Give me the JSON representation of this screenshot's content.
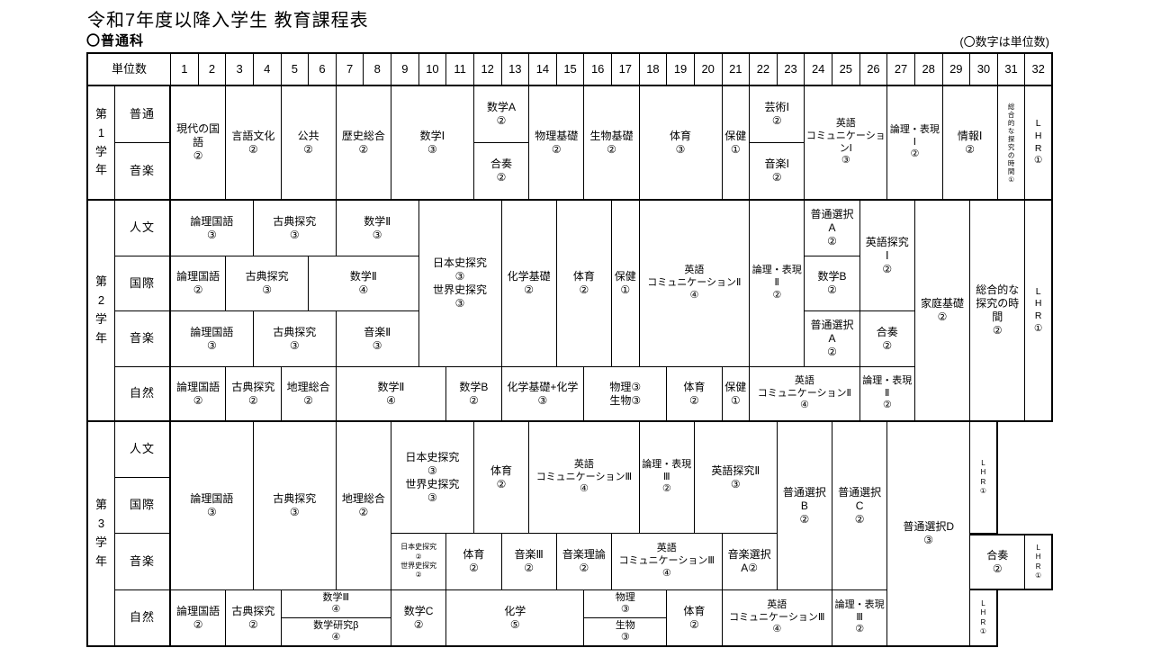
{
  "page": {
    "title": "令和7年度以降入学生 教育課程表",
    "section_label": "〇普通科",
    "unit_note": "(〇数字は単位数)"
  },
  "table": {
    "unit_header_label": "単位数",
    "unit_columns": [
      "1",
      "2",
      "3",
      "4",
      "5",
      "6",
      "7",
      "8",
      "9",
      "10",
      "11",
      "12",
      "13",
      "14",
      "15",
      "16",
      "17",
      "18",
      "19",
      "20",
      "21",
      "22",
      "23",
      "24",
      "25",
      "26",
      "27",
      "28",
      "29",
      "30",
      "31",
      "32"
    ],
    "year_rows": [
      {
        "r": 2,
        "rs": 2,
        "label": "第1学年",
        "b": "bl2 bb2"
      },
      {
        "r": 4,
        "rs": 4,
        "label": "第2学年",
        "b": "bl2 bb2"
      },
      {
        "r": 8,
        "rs": 4,
        "label": "第3学年",
        "b": "bl2 bb2"
      }
    ],
    "stream_rows": [
      {
        "r": 2,
        "label": "普通"
      },
      {
        "r": 3,
        "label": "音楽",
        "b": "bb2"
      },
      {
        "r": 4,
        "label": "人文"
      },
      {
        "r": 5,
        "label": "国際"
      },
      {
        "r": 6,
        "label": "音楽"
      },
      {
        "r": 7,
        "label": "自然",
        "b": "bb2"
      },
      {
        "r": 8,
        "label": "人文"
      },
      {
        "r": 9,
        "label": "国際"
      },
      {
        "r": 10,
        "label": "音楽"
      },
      {
        "r": 11,
        "label": "自然",
        "b": "bb2"
      }
    ],
    "cells": [
      {
        "r": 2,
        "rs": 2,
        "c": 1,
        "cs": 2,
        "t": [
          "現代の国語",
          "②"
        ],
        "b": "bb2"
      },
      {
        "r": 2,
        "rs": 2,
        "c": 3,
        "cs": 2,
        "t": [
          "言語文化",
          "②"
        ],
        "b": "bb2"
      },
      {
        "r": 2,
        "rs": 2,
        "c": 5,
        "cs": 2,
        "t": [
          "公共",
          "②"
        ],
        "b": "bb2"
      },
      {
        "r": 2,
        "rs": 2,
        "c": 7,
        "cs": 2,
        "t": [
          "歴史総合",
          "②"
        ],
        "b": "bb2"
      },
      {
        "r": 2,
        "rs": 2,
        "c": 9,
        "cs": 3,
        "t": [
          "数学Ⅰ",
          "③"
        ],
        "b": "bb2"
      },
      {
        "r": 2,
        "rs": 1,
        "c": 12,
        "cs": 2,
        "t": [
          "数学A",
          "②"
        ]
      },
      {
        "r": 3,
        "rs": 1,
        "c": 12,
        "cs": 2,
        "t": [
          "合奏",
          "②"
        ],
        "b": "bb2"
      },
      {
        "r": 2,
        "rs": 2,
        "c": 14,
        "cs": 2,
        "t": [
          "物理基礎",
          "②"
        ],
        "b": "bb2"
      },
      {
        "r": 2,
        "rs": 2,
        "c": 16,
        "cs": 2,
        "t": [
          "生物基礎",
          "②"
        ],
        "b": "bb2"
      },
      {
        "r": 2,
        "rs": 2,
        "c": 18,
        "cs": 3,
        "t": [
          "体育",
          "③"
        ],
        "b": "bb2"
      },
      {
        "r": 2,
        "rs": 2,
        "c": 21,
        "cs": 1,
        "t": [
          "保健",
          "①"
        ],
        "b": "bb2"
      },
      {
        "r": 2,
        "rs": 1,
        "c": 22,
        "cs": 2,
        "t": [
          "芸術Ⅰ",
          "②"
        ]
      },
      {
        "r": 3,
        "rs": 1,
        "c": 22,
        "cs": 2,
        "t": [
          "音楽Ⅰ",
          "②"
        ],
        "b": "bb2"
      },
      {
        "r": 2,
        "rs": 2,
        "c": 24,
        "cs": 3,
        "t": [
          "英語",
          "コミュニケーションⅠ",
          "③"
        ],
        "cls": "s11",
        "b": "bb2"
      },
      {
        "r": 2,
        "rs": 2,
        "c": 27,
        "cs": 2,
        "t": [
          "論理・表現",
          "Ⅰ",
          "②"
        ],
        "cls": "s11",
        "b": "bb2"
      },
      {
        "r": 2,
        "rs": 2,
        "c": 29,
        "cs": 2,
        "t": [
          "情報Ⅰ",
          "②"
        ],
        "b": "bb2"
      },
      {
        "r": 2,
        "rs": 2,
        "c": 31,
        "cs": 1,
        "t": [
          "総合的な探究の時間①"
        ],
        "cls": "vxs",
        "v": true,
        "b": "bb2"
      },
      {
        "r": 2,
        "rs": 2,
        "c": 32,
        "cs": 1,
        "t": [
          "LHR①"
        ],
        "cls": "lhr",
        "v": true,
        "b": "bb2 br2"
      },
      {
        "r": 4,
        "rs": 1,
        "c": 1,
        "cs": 3,
        "t": [
          "論理国語",
          "③"
        ]
      },
      {
        "r": 4,
        "rs": 1,
        "c": 4,
        "cs": 3,
        "t": [
          "古典探究",
          "③"
        ]
      },
      {
        "r": 4,
        "rs": 1,
        "c": 7,
        "cs": 3,
        "t": [
          "数学Ⅱ",
          "③"
        ]
      },
      {
        "r": 5,
        "rs": 1,
        "c": 1,
        "cs": 2,
        "t": [
          "論理国語",
          "②"
        ]
      },
      {
        "r": 5,
        "rs": 1,
        "c": 3,
        "cs": 3,
        "t": [
          "古典探究",
          "③"
        ]
      },
      {
        "r": 5,
        "rs": 1,
        "c": 6,
        "cs": 4,
        "t": [
          "数学Ⅱ",
          "④"
        ]
      },
      {
        "r": 6,
        "rs": 1,
        "c": 1,
        "cs": 3,
        "t": [
          "論理国語",
          "③"
        ]
      },
      {
        "r": 6,
        "rs": 1,
        "c": 4,
        "cs": 3,
        "t": [
          "古典探究",
          "③"
        ]
      },
      {
        "r": 6,
        "rs": 1,
        "c": 7,
        "cs": 3,
        "t": [
          "音楽Ⅱ",
          "③"
        ]
      },
      {
        "r": 4,
        "rs": 3,
        "c": 10,
        "cs": 3,
        "t": [
          "日本史探究",
          "③",
          "世界史探究",
          "③"
        ]
      },
      {
        "r": 4,
        "rs": 3,
        "c": 13,
        "cs": 2,
        "t": [
          "化学基礎",
          "②"
        ]
      },
      {
        "r": 4,
        "rs": 3,
        "c": 15,
        "cs": 2,
        "t": [
          "体育",
          "②"
        ]
      },
      {
        "r": 4,
        "rs": 3,
        "c": 17,
        "cs": 1,
        "t": [
          "保健",
          "①"
        ]
      },
      {
        "r": 4,
        "rs": 3,
        "c": 18,
        "cs": 4,
        "t": [
          "英語",
          "コミュニケーションⅡ",
          "④"
        ],
        "cls": "s11"
      },
      {
        "r": 4,
        "rs": 3,
        "c": 22,
        "cs": 2,
        "t": [
          "論理・表現",
          "Ⅱ",
          "②"
        ],
        "cls": "s11"
      },
      {
        "r": 4,
        "rs": 1,
        "c": 24,
        "cs": 2,
        "t": [
          "普通選択",
          "A",
          "②"
        ]
      },
      {
        "r": 5,
        "rs": 1,
        "c": 24,
        "cs": 2,
        "t": [
          "数学B",
          "②"
        ]
      },
      {
        "r": 6,
        "rs": 1,
        "c": 24,
        "cs": 2,
        "t": [
          "普通選択",
          "A",
          "②"
        ]
      },
      {
        "r": 4,
        "rs": 2,
        "c": 26,
        "cs": 2,
        "t": [
          "英語探究",
          "Ⅰ",
          "②"
        ]
      },
      {
        "r": 6,
        "rs": 1,
        "c": 26,
        "cs": 2,
        "t": [
          "合奏",
          "②"
        ]
      },
      {
        "r": 7,
        "rs": 1,
        "c": 1,
        "cs": 2,
        "t": [
          "論理国語",
          "②"
        ],
        "b": "bb2"
      },
      {
        "r": 7,
        "rs": 1,
        "c": 3,
        "cs": 2,
        "t": [
          "古典探究",
          "②"
        ],
        "b": "bb2"
      },
      {
        "r": 7,
        "rs": 1,
        "c": 5,
        "cs": 2,
        "t": [
          "地理総合",
          "②"
        ],
        "b": "bb2"
      },
      {
        "r": 7,
        "rs": 1,
        "c": 7,
        "cs": 4,
        "t": [
          "数学Ⅱ",
          "④"
        ],
        "b": "bb2"
      },
      {
        "r": 7,
        "rs": 1,
        "c": 11,
        "cs": 2,
        "t": [
          "数学B",
          "②"
        ],
        "b": "bb2"
      },
      {
        "r": 7,
        "rs": 1,
        "c": 13,
        "cs": 3,
        "t": [
          "化学基礎+化学",
          "③"
        ],
        "b": "bb2"
      },
      {
        "r": 7,
        "rs": 1,
        "c": 16,
        "cs": 3,
        "t": [
          "物理③",
          "生物③"
        ],
        "b": "bb2"
      },
      {
        "r": 7,
        "rs": 1,
        "c": 19,
        "cs": 2,
        "t": [
          "体育",
          "②"
        ],
        "b": "bb2"
      },
      {
        "r": 7,
        "rs": 1,
        "c": 21,
        "cs": 1,
        "t": [
          "保健",
          "①"
        ],
        "b": "bb2"
      },
      {
        "r": 7,
        "rs": 1,
        "c": 22,
        "cs": 4,
        "t": [
          "英語",
          "コミュニケーションⅡ",
          "④"
        ],
        "cls": "s11",
        "b": "bb2"
      },
      {
        "r": 7,
        "rs": 1,
        "c": 26,
        "cs": 2,
        "t": [
          "論理・表現",
          "Ⅱ",
          "②"
        ],
        "cls": "s11",
        "b": "bb2"
      },
      {
        "r": 4,
        "rs": 4,
        "c": 28,
        "cs": 2,
        "t": [
          "家庭基礎",
          "②"
        ],
        "b": "bb2"
      },
      {
        "r": 4,
        "rs": 4,
        "c": 30,
        "cs": 2,
        "t": [
          "総合的な探究の時間",
          "②"
        ],
        "b": "bb2"
      },
      {
        "r": 4,
        "rs": 4,
        "c": 32,
        "cs": 1,
        "t": [
          "LHR①"
        ],
        "cls": "lhr",
        "v": true,
        "b": "bb2 br2"
      },
      {
        "r": 8,
        "rs": 3,
        "c": 1,
        "cs": 3,
        "t": [
          "論理国語",
          "③"
        ]
      },
      {
        "r": 8,
        "rs": 3,
        "c": 4,
        "cs": 3,
        "t": [
          "古典探究",
          "③"
        ]
      },
      {
        "r": 8,
        "rs": 3,
        "c": 7,
        "cs": 2,
        "t": [
          "地理総合",
          "②"
        ]
      },
      {
        "r": 8,
        "rs": 2,
        "c": 9,
        "cs": 3,
        "t": [
          "日本史探究",
          "③",
          "世界史探究",
          "③"
        ]
      },
      {
        "r": 8,
        "rs": 2,
        "c": 12,
        "cs": 2,
        "t": [
          "体育",
          "②"
        ]
      },
      {
        "r": 8,
        "rs": 2,
        "c": 14,
        "cs": 4,
        "t": [
          "英語",
          "コミュニケーションⅢ",
          "④"
        ],
        "cls": "s11"
      },
      {
        "r": 8,
        "rs": 2,
        "c": 18,
        "cs": 2,
        "t": [
          "論理・表現",
          "Ⅲ",
          "②"
        ],
        "cls": "s11"
      },
      {
        "r": 8,
        "rs": 2,
        "c": 20,
        "cs": 3,
        "t": [
          "英語探究Ⅱ",
          "③"
        ]
      },
      {
        "r": 8,
        "rs": 3,
        "c": 23,
        "cs": 2,
        "t": [
          "普通選択",
          "B",
          "②"
        ]
      },
      {
        "r": 8,
        "rs": 3,
        "c": 25,
        "cs": 2,
        "t": [
          "普通選択",
          "C",
          "②"
        ]
      },
      {
        "r": 8,
        "rs": 4,
        "c": 27,
        "cs": 3,
        "t": [
          "普通選択D",
          "③"
        ],
        "b": "bb2"
      },
      {
        "r": 8,
        "rs": 2,
        "c": 30,
        "cs": 1,
        "t": [
          "LHR①"
        ],
        "cls": "lhr xs",
        "v": true,
        "b": "br2"
      },
      {
        "r": 10,
        "rs": 1,
        "c": 9,
        "cs": 2,
        "t": [
          "日本史探究",
          "②",
          "世界史探究",
          "②"
        ],
        "cls": "xs"
      },
      {
        "r": 10,
        "rs": 1,
        "c": 11,
        "cs": 2,
        "t": [
          "体育",
          "②"
        ]
      },
      {
        "r": 10,
        "rs": 1,
        "c": 13,
        "cs": 2,
        "t": [
          "音楽Ⅲ",
          "②"
        ]
      },
      {
        "r": 10,
        "rs": 1,
        "c": 15,
        "cs": 2,
        "t": [
          "音楽理論",
          "②"
        ]
      },
      {
        "r": 10,
        "rs": 1,
        "c": 17,
        "cs": 4,
        "t": [
          "英語",
          "コミュニケーションⅢ",
          "④"
        ],
        "cls": "s11"
      },
      {
        "r": 10,
        "rs": 1,
        "c": 21,
        "cs": 2,
        "t": [
          "音楽選択",
          "A②"
        ]
      },
      {
        "r": 10,
        "rs": 1,
        "c": 30,
        "cs": 2,
        "t": [
          "合奏",
          "②"
        ],
        "b": "bt2 bb2"
      },
      {
        "r": 10,
        "rs": 1,
        "c": 32,
        "cs": 1,
        "t": [
          "LHR①"
        ],
        "cls": "lhr xs",
        "v": true,
        "b": "bt2 br2 bb2"
      },
      {
        "r": 11,
        "rs": 1,
        "c": 1,
        "cs": 2,
        "t": [
          "論理国語",
          "②"
        ],
        "b": "bb2"
      },
      {
        "r": 11,
        "rs": 1,
        "c": 3,
        "cs": 2,
        "t": [
          "古典探究",
          "②"
        ],
        "b": "bb2"
      },
      {
        "r": 11,
        "rs": 1,
        "c": 5,
        "cs": 4,
        "split": [
          [
            "数学Ⅲ",
            "④"
          ],
          [
            "数学研究β",
            "④"
          ]
        ],
        "b": "bb2"
      },
      {
        "r": 11,
        "rs": 1,
        "c": 9,
        "cs": 2,
        "t": [
          "数学C",
          "②"
        ],
        "b": "bb2"
      },
      {
        "r": 11,
        "rs": 1,
        "c": 11,
        "cs": 5,
        "t": [
          "化学",
          "⑤"
        ],
        "b": "bb2"
      },
      {
        "r": 11,
        "rs": 1,
        "c": 16,
        "cs": 3,
        "split": [
          [
            "物理",
            "③"
          ],
          [
            "生物",
            "③"
          ]
        ],
        "b": "bb2"
      },
      {
        "r": 11,
        "rs": 1,
        "c": 19,
        "cs": 2,
        "t": [
          "体育",
          "②"
        ],
        "b": "bb2"
      },
      {
        "r": 11,
        "rs": 1,
        "c": 21,
        "cs": 4,
        "t": [
          "英語",
          "コミュニケーションⅢ",
          "④"
        ],
        "cls": "s11",
        "b": "bb2"
      },
      {
        "r": 11,
        "rs": 1,
        "c": 25,
        "cs": 2,
        "t": [
          "論理・表現",
          "Ⅲ",
          "②"
        ],
        "cls": "s11",
        "b": "bb2"
      },
      {
        "r": 11,
        "rs": 1,
        "c": 30,
        "cs": 1,
        "t": [
          "LHR①"
        ],
        "cls": "lhr xs",
        "v": true,
        "b": "br2 bb2"
      }
    ]
  }
}
